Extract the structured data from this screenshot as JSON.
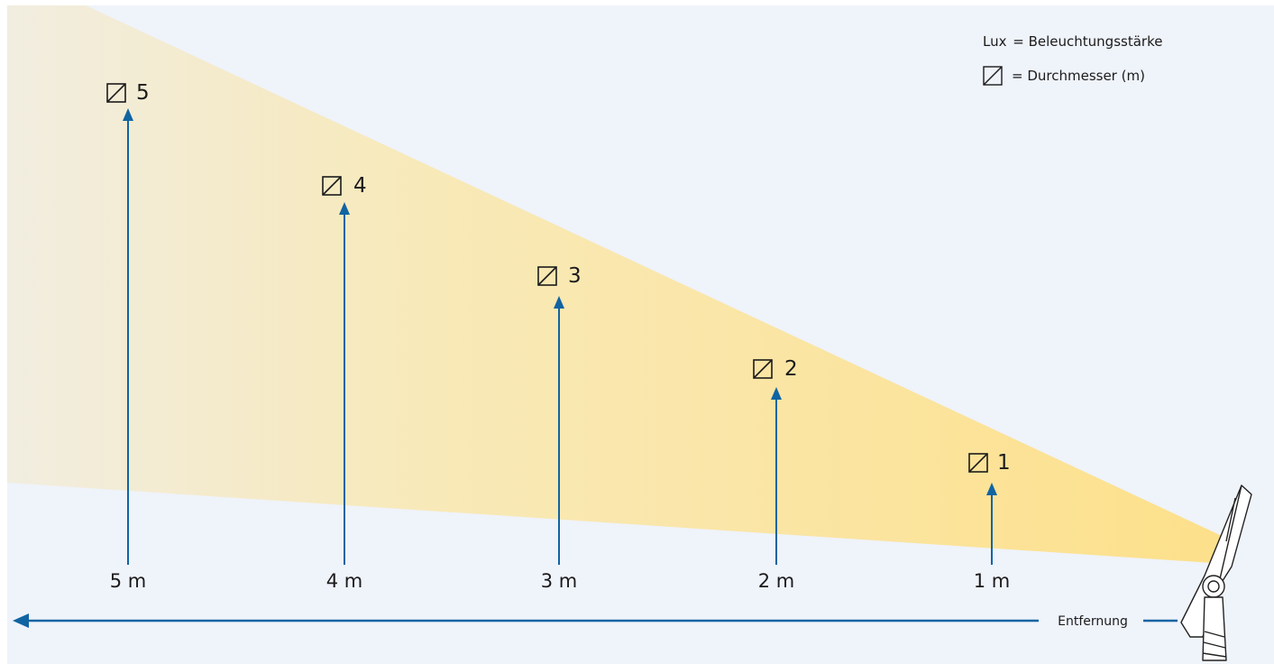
{
  "colors": {
    "background": "#eff3fa",
    "beam_far": "#f1ede0",
    "beam_near": "#fde08a",
    "arrow": "#1064a2",
    "text": "#1b1b1b",
    "fixture_outline": "#222222"
  },
  "legend": {
    "lux_symbol": "Lux",
    "lux_text": "= Beleuchtungsstärke",
    "diameter_text": "= Durchmesser (m)",
    "diameter_icon": "diameter-icon"
  },
  "axis": {
    "label": "Entfernung",
    "direction": "left"
  },
  "markers": [
    {
      "distance": "5 m",
      "diameter": "5"
    },
    {
      "distance": "4 m",
      "diameter": "4"
    },
    {
      "distance": "3 m",
      "diameter": "3"
    },
    {
      "distance": "2 m",
      "diameter": "2"
    },
    {
      "distance": "1 m",
      "diameter": "1"
    }
  ]
}
